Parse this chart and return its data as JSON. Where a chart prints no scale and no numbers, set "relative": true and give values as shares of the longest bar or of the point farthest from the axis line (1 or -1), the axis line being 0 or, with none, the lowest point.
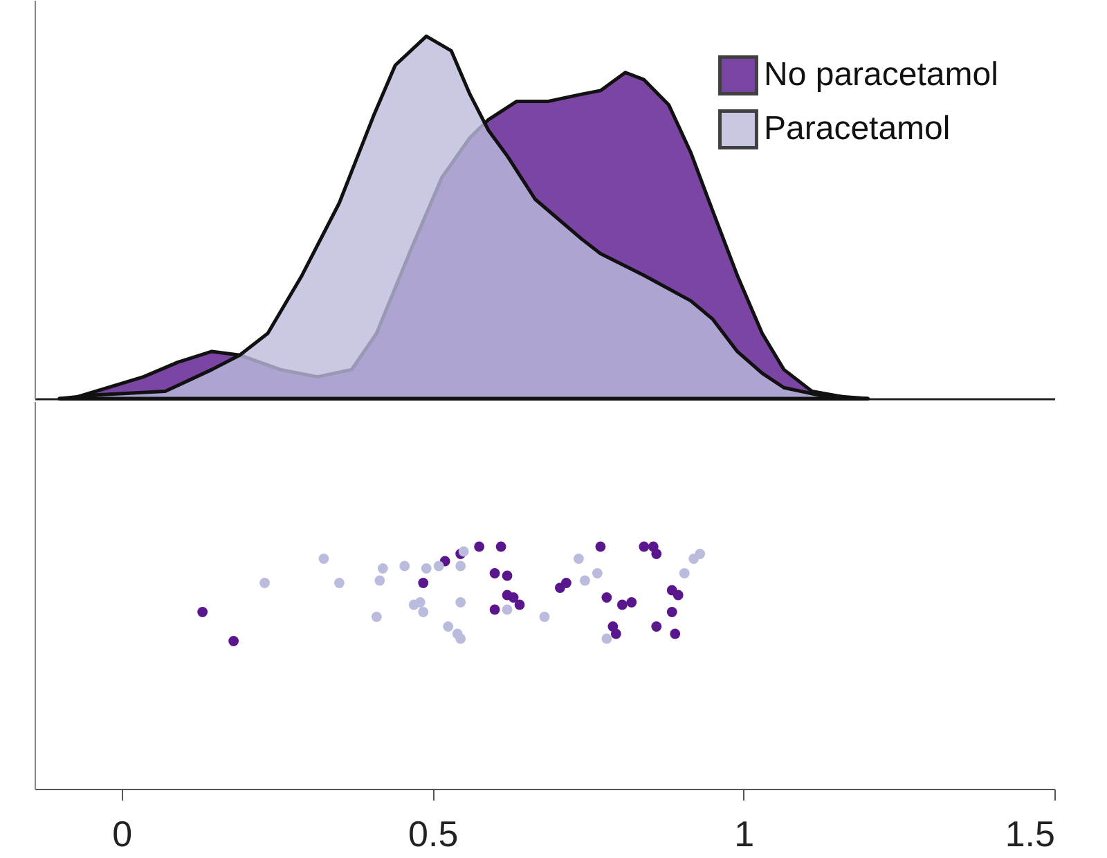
{
  "chart_data": [
    {
      "type": "area",
      "relative": true,
      "xlim": [
        -0.14,
        1.5
      ],
      "tick_labels": false,
      "legend": "top right",
      "series": [
        {
          "name": "No paracetamol",
          "color": "#5a168c",
          "x": [
            -0.1,
            -0.08,
            0.035,
            0.09,
            0.145,
            0.19,
            0.255,
            0.315,
            0.37,
            0.41,
            0.465,
            0.515,
            0.56,
            0.59,
            0.635,
            0.685,
            0.74,
            0.77,
            0.81,
            0.84,
            0.88,
            0.915,
            0.95,
            0.99,
            1.03,
            1.065,
            1.11,
            1.175,
            1.2
          ],
          "values": [
            0,
            0,
            0.06,
            0.1,
            0.13,
            0.12,
            0.08,
            0.06,
            0.08,
            0.18,
            0.41,
            0.61,
            0.72,
            0.77,
            0.82,
            0.82,
            0.84,
            0.85,
            0.9,
            0.88,
            0.81,
            0.68,
            0.52,
            0.34,
            0.18,
            0.08,
            0.02,
            0,
            0
          ]
        },
        {
          "name": "Paracetamol",
          "color": "#bbbbdd",
          "x": [
            -0.1,
            -0.04,
            0.07,
            0.145,
            0.19,
            0.235,
            0.29,
            0.35,
            0.405,
            0.44,
            0.49,
            0.53,
            0.56,
            0.59,
            0.62,
            0.665,
            0.74,
            0.77,
            0.84,
            0.915,
            0.95,
            0.99,
            1.03,
            1.065,
            1.12,
            1.2
          ],
          "values": [
            0,
            0.01,
            0.02,
            0.08,
            0.12,
            0.18,
            0.34,
            0.54,
            0.78,
            0.92,
            1,
            0.96,
            0.84,
            0.74,
            0.67,
            0.55,
            0.44,
            0.4,
            0.34,
            0.27,
            0.22,
            0.13,
            0.07,
            0.03,
            0.01,
            0
          ]
        }
      ]
    },
    {
      "type": "scatter",
      "relative": true,
      "xlim": [
        -0.14,
        1.5
      ],
      "xticks": [
        0,
        0.5,
        1,
        1.5
      ],
      "tick_labels": "x",
      "series": [
        {
          "color": "#5a168c",
          "x": [
            0.13,
            0.18,
            0.485,
            0.52,
            0.545,
            0.575,
            0.61,
            0.6,
            0.62,
            0.62,
            0.63,
            0.64,
            0.6,
            0.705,
            0.715,
            0.77,
            0.78,
            0.805,
            0.82,
            0.79,
            0.795,
            0.84,
            0.855,
            0.86,
            0.86,
            0.885,
            0.895,
            0.885,
            0.89
          ],
          "values": [
            0.73,
            0.61,
            0.85,
            0.94,
            0.97,
            1,
            1,
            0.89,
            0.88,
            0.8,
            0.79,
            0.76,
            0.74,
            0.83,
            0.85,
            1,
            0.79,
            0.76,
            0.77,
            0.67,
            0.64,
            1,
            1,
            0.97,
            0.67,
            0.82,
            0.8,
            0.73,
            0.64
          ]
        },
        {
          "color": "#bbbbdd",
          "x": [
            0.23,
            0.325,
            0.35,
            0.41,
            0.415,
            0.42,
            0.455,
            0.47,
            0.48,
            0.485,
            0.49,
            0.51,
            0.525,
            0.54,
            0.545,
            0.545,
            0.545,
            0.55,
            0.62,
            0.68,
            0.735,
            0.745,
            0.765,
            0.78,
            0.905,
            0.92,
            0.93
          ],
          "values": [
            0.85,
            0.95,
            0.85,
            0.71,
            0.86,
            0.91,
            0.92,
            0.76,
            0.77,
            0.73,
            0.91,
            0.92,
            0.67,
            0.64,
            0.62,
            0.77,
            0.92,
            0.98,
            0.74,
            0.71,
            0.95,
            0.86,
            0.89,
            0.62,
            0.89,
            0.95,
            0.97
          ]
        }
      ]
    }
  ]
}
